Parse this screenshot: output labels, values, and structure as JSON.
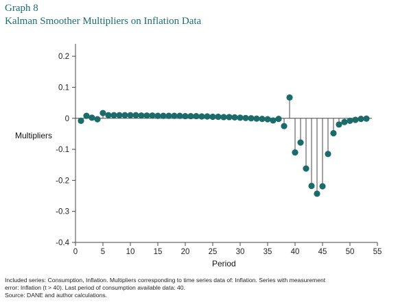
{
  "header": {
    "graph_number": "Graph 8",
    "title": "Kalman Smoother Multipliers on Inflation Data"
  },
  "footnotes": {
    "line1": "Included series: Consumption, Inflation. Multipliers corresponding to time series data of: Inflation. Series with measurement",
    "line2": "error: Inflation (t > 40). Last period of consumption available data: 40.",
    "source": "Source: DANE and author calculations."
  },
  "colors": {
    "marker": "#1c6b6b",
    "stem": "#444444",
    "title": "#1a6e6a"
  },
  "chart_data": {
    "type": "scatter",
    "style": "stem",
    "xlabel": "Period",
    "ylabel": "Multipliers",
    "xlim": [
      0,
      55
    ],
    "ylim": [
      -0.4,
      0.24
    ],
    "xticks": [
      0,
      5,
      10,
      15,
      20,
      25,
      30,
      35,
      40,
      45,
      50,
      55
    ],
    "yticks": [
      -0.4,
      -0.3,
      -0.2,
      -0.1,
      0,
      0.1,
      0.2
    ],
    "ytick_labels": [
      "-0.4",
      "-0.3",
      "-0.2",
      "-0.1",
      "0",
      "0.1",
      "0.2"
    ],
    "grid": false,
    "x": [
      1,
      2,
      3,
      4,
      5,
      6,
      7,
      8,
      9,
      10,
      11,
      12,
      13,
      14,
      15,
      16,
      17,
      18,
      19,
      20,
      21,
      22,
      23,
      24,
      25,
      26,
      27,
      28,
      29,
      30,
      31,
      32,
      33,
      34,
      35,
      36,
      37,
      38,
      39,
      40,
      41,
      42,
      43,
      44,
      45,
      46,
      47,
      48,
      49,
      50,
      51,
      52,
      53
    ],
    "y": [
      -0.008,
      0.008,
      0.002,
      -0.003,
      0.017,
      0.01,
      0.01,
      0.01,
      0.01,
      0.01,
      0.01,
      0.009,
      0.009,
      0.009,
      0.008,
      0.008,
      0.008,
      0.008,
      0.008,
      0.007,
      0.007,
      0.007,
      0.006,
      0.006,
      0.005,
      0.005,
      0.004,
      0.004,
      0.003,
      0.002,
      0.001,
      0.0,
      -0.001,
      -0.002,
      -0.003,
      -0.007,
      -0.002,
      -0.025,
      0.067,
      -0.11,
      -0.078,
      -0.162,
      -0.218,
      -0.243,
      -0.219,
      -0.115,
      -0.048,
      -0.02,
      -0.012,
      -0.008,
      -0.005,
      -0.002,
      -0.001
    ]
  }
}
